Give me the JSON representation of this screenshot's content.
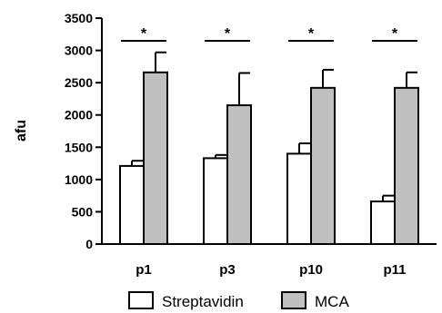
{
  "chart_data": {
    "type": "bar",
    "title": "",
    "xlabel": "",
    "ylabel": "afu",
    "ylim": [
      0,
      3500
    ],
    "yticks": [
      0,
      500,
      1000,
      1500,
      2000,
      2500,
      3000,
      3500
    ],
    "categories": [
      "p1",
      "p3",
      "p10",
      "p11"
    ],
    "series": [
      {
        "name": "Streptavidin",
        "color": "#ffffff",
        "values": [
          1210,
          1330,
          1400,
          660
        ],
        "errors": [
          80,
          50,
          160,
          90
        ]
      },
      {
        "name": "MCA",
        "color": "#c0c0c0",
        "values": [
          2660,
          2150,
          2420,
          2420
        ],
        "errors": [
          310,
          500,
          280,
          240
        ]
      }
    ],
    "significance": [
      "*",
      "*",
      "*",
      "*"
    ],
    "legend": {
      "position": "bottom",
      "entries": [
        "Streptavidin",
        "MCA"
      ]
    },
    "grid": false
  }
}
